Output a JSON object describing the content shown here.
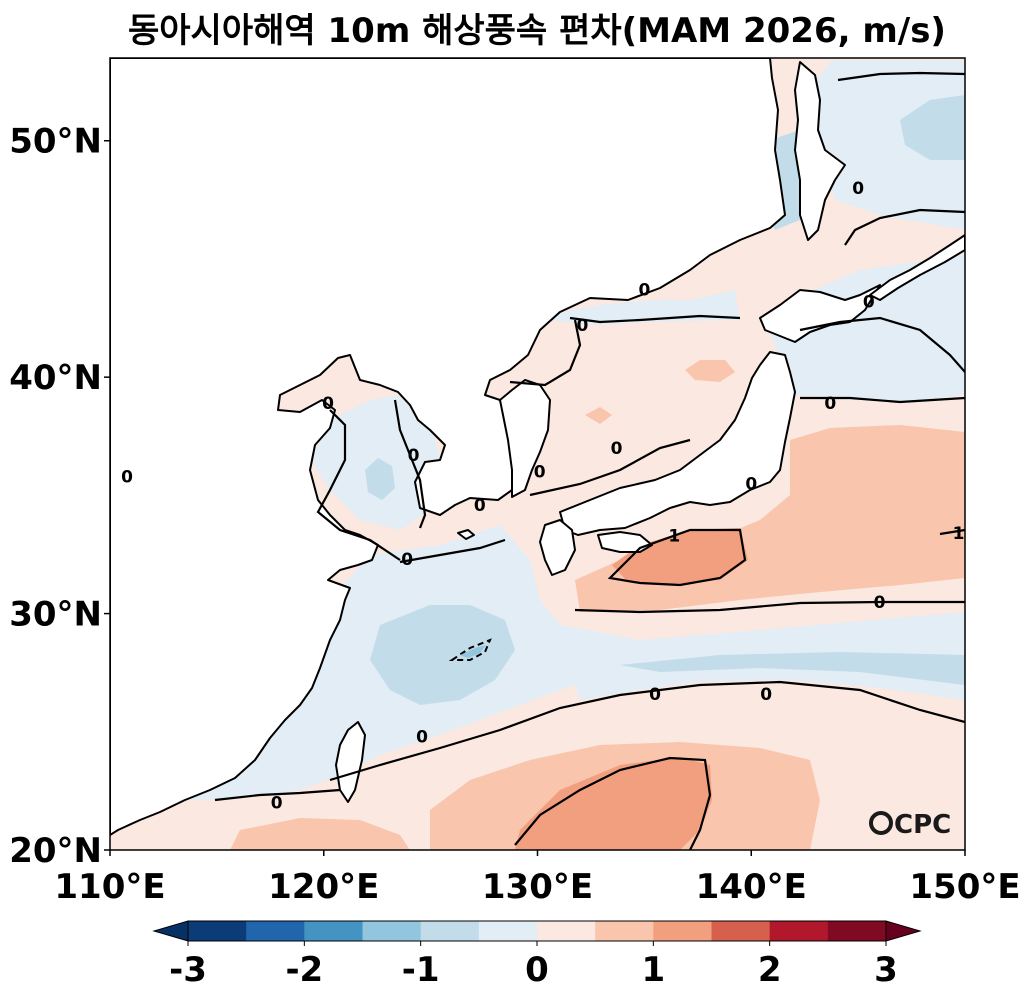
{
  "title": "동아시아해역 10m 해상풍속 편차(MAM 2026, m/s)",
  "map": {
    "lon_range": [
      110,
      150
    ],
    "lat_range": [
      20,
      53.5
    ],
    "x_ticks": [
      {
        "lon": 110,
        "label": "110°E"
      },
      {
        "lon": 120,
        "label": "120°E"
      },
      {
        "lon": 130,
        "label": "130°E"
      },
      {
        "lon": 140,
        "label": "140°E"
      },
      {
        "lon": 150,
        "label": "150°E"
      }
    ],
    "y_ticks": [
      {
        "lat": 20,
        "label": "20°N"
      },
      {
        "lat": 30,
        "label": "30°N"
      },
      {
        "lat": 40,
        "label": "40°N"
      },
      {
        "lat": 50,
        "label": "50°N"
      }
    ],
    "contour_labels": [
      {
        "lon": 120.2,
        "lat": 38.9,
        "text": "0"
      },
      {
        "lon": 124.2,
        "lat": 36.7,
        "text": "0"
      },
      {
        "lon": 110.8,
        "lat": 35.8,
        "text": "0"
      },
      {
        "lon": 123.9,
        "lat": 32.3,
        "text": "0"
      },
      {
        "lon": 127.3,
        "lat": 34.6,
        "text": "0"
      },
      {
        "lon": 130.1,
        "lat": 36.0,
        "text": "0"
      },
      {
        "lon": 132.1,
        "lat": 42.2,
        "text": "0"
      },
      {
        "lon": 135.0,
        "lat": 43.7,
        "text": "0"
      },
      {
        "lon": 133.7,
        "lat": 37.0,
        "text": "0"
      },
      {
        "lon": 145.0,
        "lat": 48.0,
        "text": "0"
      },
      {
        "lon": 145.5,
        "lat": 43.2,
        "text": "0"
      },
      {
        "lon": 143.7,
        "lat": 38.9,
        "text": "0"
      },
      {
        "lon": 140.0,
        "lat": 35.5,
        "text": "0"
      },
      {
        "lon": 146.0,
        "lat": 30.5,
        "text": "0"
      },
      {
        "lon": 135.5,
        "lat": 26.6,
        "text": "0"
      },
      {
        "lon": 140.7,
        "lat": 26.6,
        "text": "0"
      },
      {
        "lon": 124.6,
        "lat": 24.8,
        "text": "0"
      },
      {
        "lon": 117.8,
        "lat": 22.0,
        "text": "0"
      },
      {
        "lon": 136.4,
        "lat": 33.3,
        "text": "1"
      },
      {
        "lon": 149.7,
        "lat": 33.4,
        "text": "1"
      }
    ],
    "logo_text": "CPC"
  },
  "colorbar": {
    "ticks": [
      {
        "value": -3,
        "label": "-3"
      },
      {
        "value": -2,
        "label": "-2"
      },
      {
        "value": -1,
        "label": "-1"
      },
      {
        "value": 0,
        "label": "0"
      },
      {
        "value": 1,
        "label": "1"
      },
      {
        "value": 2,
        "label": "2"
      },
      {
        "value": 3,
        "label": "3"
      }
    ],
    "levels": [
      -3,
      -2.5,
      -2,
      -1.5,
      -1,
      -0.5,
      0,
      0.5,
      1,
      1.5,
      2,
      2.5,
      3
    ],
    "colors": [
      "#0b3c77",
      "#2166ac",
      "#4393c3",
      "#92c5de",
      "#c2dcea",
      "#e2edf5",
      "#fbe8e1",
      "#f9c5ad",
      "#f29f7f",
      "#d6604d",
      "#b2182b",
      "#7f0a22"
    ],
    "under_color": "#073065",
    "over_color": "#67001f"
  },
  "colors": {
    "land": "#ffffff",
    "coast": "#000000",
    "contour": "#000000"
  }
}
